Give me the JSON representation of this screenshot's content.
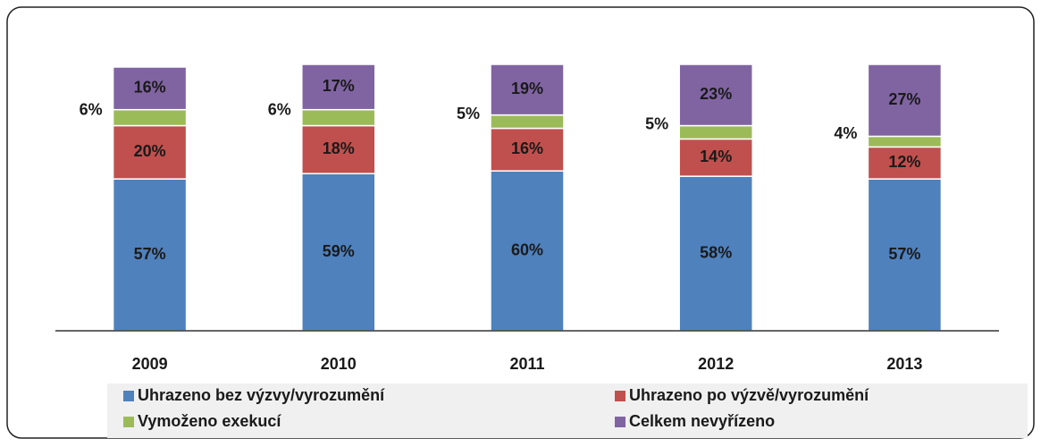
{
  "chart_data": {
    "type": "stacked_bar",
    "categories": [
      "2009",
      "2010",
      "2011",
      "2012",
      "2013"
    ],
    "ylim": [
      0,
      100
    ],
    "series": [
      {
        "name": "Uhrazeno bez výzvy/vyrozumění",
        "color": "#4f81bd",
        "values": [
          57,
          59,
          60,
          58,
          57
        ],
        "value_labels": [
          "57%",
          "59%",
          "60%",
          "58%",
          "57%"
        ]
      },
      {
        "name": "Uhrazeno po výzvě/vyrozumění",
        "color": "#c0504d",
        "values": [
          20,
          18,
          16,
          14,
          12
        ],
        "value_labels": [
          "20%",
          "18%",
          "16%",
          "14%",
          "12%"
        ]
      },
      {
        "name": "Vymoženo exekucí",
        "color": "#9bbb59",
        "values": [
          6,
          6,
          5,
          5,
          4
        ],
        "value_labels": [
          "6%",
          "6%",
          "5%",
          "5%",
          "4%"
        ]
      },
      {
        "name": "Celkem nevyřízeno",
        "color": "#8064a2",
        "values": [
          16,
          17,
          19,
          23,
          27
        ],
        "value_labels": [
          "16%",
          "17%",
          "19%",
          "23%",
          "27%"
        ]
      }
    ],
    "legend": "bottom"
  }
}
